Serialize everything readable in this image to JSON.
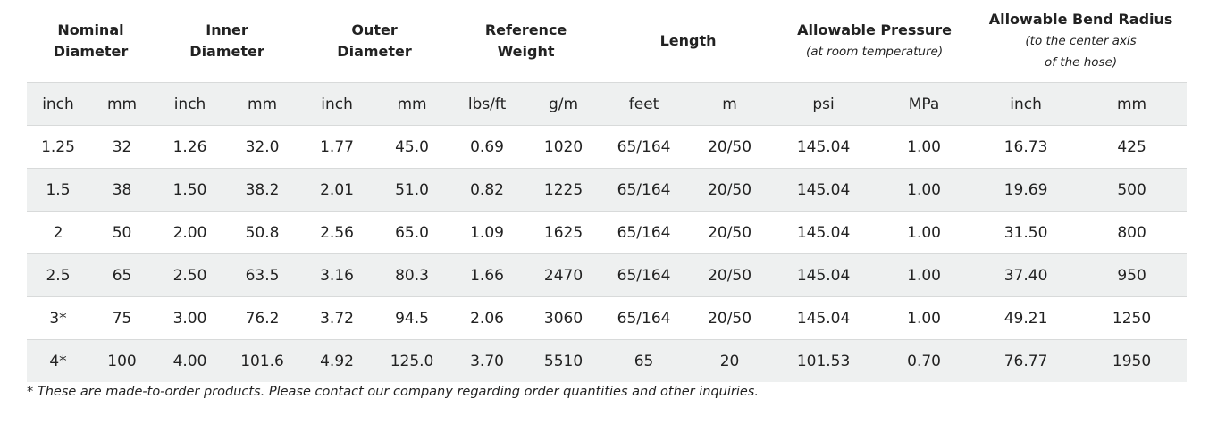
{
  "table": {
    "groups": [
      {
        "title": [
          "Nominal",
          "Diameter"
        ],
        "span": 2
      },
      {
        "title": [
          "Inner",
          "Diameter"
        ],
        "span": 2
      },
      {
        "title": [
          "Outer",
          "Diameter"
        ],
        "span": 2
      },
      {
        "title": [
          "Reference",
          "Weight"
        ],
        "span": 2
      },
      {
        "title": [
          "Length"
        ],
        "span": 2
      },
      {
        "title": [
          "Allowable Pressure"
        ],
        "note": [
          "(at room temperature)"
        ],
        "span": 2
      },
      {
        "title": [
          "Allowable Bend Radius"
        ],
        "note": [
          "(to the center axis",
          "of the hose)"
        ],
        "span": 2
      }
    ],
    "units": [
      "inch",
      "mm",
      "inch",
      "mm",
      "inch",
      "mm",
      "lbs/ft",
      "g/m",
      "feet",
      "m",
      "psi",
      "MPa",
      "inch",
      "mm"
    ],
    "rows": [
      [
        "1.25",
        "32",
        "1.26",
        "32.0",
        "1.77",
        "45.0",
        "0.69",
        "1020",
        "65/164",
        "20/50",
        "145.04",
        "1.00",
        "16.73",
        "425"
      ],
      [
        "1.5",
        "38",
        "1.50",
        "38.2",
        "2.01",
        "51.0",
        "0.82",
        "1225",
        "65/164",
        "20/50",
        "145.04",
        "1.00",
        "19.69",
        "500"
      ],
      [
        "2",
        "50",
        "2.00",
        "50.8",
        "2.56",
        "65.0",
        "1.09",
        "1625",
        "65/164",
        "20/50",
        "145.04",
        "1.00",
        "31.50",
        "800"
      ],
      [
        "2.5",
        "65",
        "2.50",
        "63.5",
        "3.16",
        "80.3",
        "1.66",
        "2470",
        "65/164",
        "20/50",
        "145.04",
        "1.00",
        "37.40",
        "950"
      ],
      [
        "3*",
        "75",
        "3.00",
        "76.2",
        "3.72",
        "94.5",
        "2.06",
        "3060",
        "65/164",
        "20/50",
        "145.04",
        "1.00",
        "49.21",
        "1250"
      ],
      [
        "4*",
        "100",
        "4.00",
        "101.6",
        "4.92",
        "125.0",
        "3.70",
        "5510",
        "65",
        "20",
        "101.53",
        "0.70",
        "76.77",
        "1950"
      ]
    ]
  },
  "footnote": "* These are made-to-order products. Please contact our company regarding order quantities and other inquiries."
}
